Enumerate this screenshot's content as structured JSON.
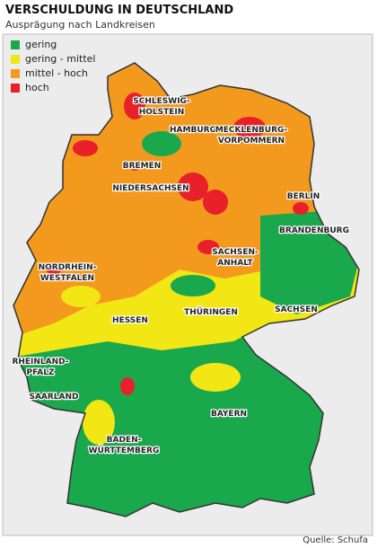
{
  "header": {
    "title": "VERSCHULDUNG IN DEUTSCHLAND",
    "subtitle": "Ausprägung nach Landkreisen"
  },
  "legend": [
    {
      "label": "gering",
      "color": "#1aa84c"
    },
    {
      "label": "gering - mittel",
      "color": "#f2e614"
    },
    {
      "label": "mittel - hoch",
      "color": "#f39a1e"
    },
    {
      "label": "hoch",
      "color": "#e8202a"
    }
  ],
  "regions": [
    {
      "lines": [
        "SCHLESWIG-",
        "HOLSTEIN"
      ]
    },
    {
      "lines": [
        "HAMBURG"
      ]
    },
    {
      "lines": [
        "MECKLENBURG-",
        "VORPOMMERN"
      ]
    },
    {
      "lines": [
        "BREMEN"
      ]
    },
    {
      "lines": [
        "NIEDERSACHSEN"
      ]
    },
    {
      "lines": [
        "BERLIN"
      ]
    },
    {
      "lines": [
        "BRANDENBURG"
      ]
    },
    {
      "lines": [
        "SACHSEN-",
        "ANHALT"
      ]
    },
    {
      "lines": [
        "NORDRHEIN-",
        "WESTFALEN"
      ]
    },
    {
      "lines": [
        "HESSEN"
      ]
    },
    {
      "lines": [
        "THÜRINGEN"
      ]
    },
    {
      "lines": [
        "SACHSEN"
      ]
    },
    {
      "lines": [
        "RHEINLAND-",
        "PFALZ"
      ]
    },
    {
      "lines": [
        "SAARLAND"
      ]
    },
    {
      "lines": [
        "BAYERN"
      ]
    },
    {
      "lines": [
        "BADEN-",
        "WÜRTTEMBERG"
      ]
    }
  ],
  "source": "Quelle: Schufa"
}
